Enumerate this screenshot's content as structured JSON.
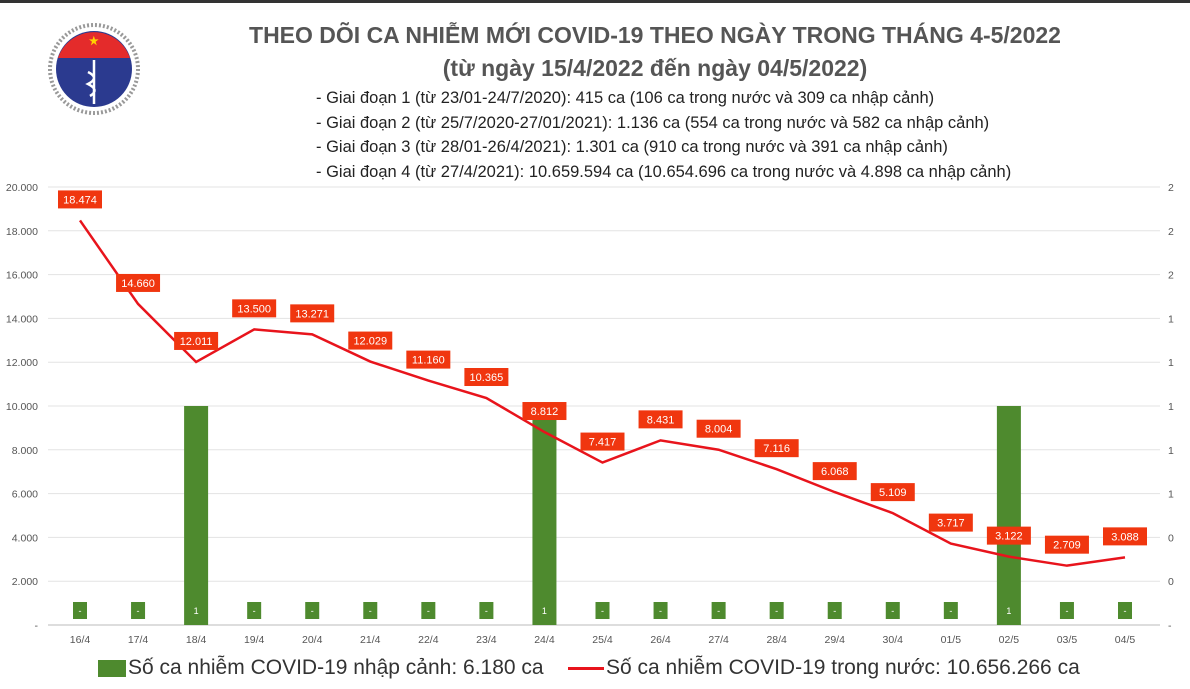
{
  "logo": {
    "top_text": "BỘ Y TẾ",
    "bottom_text": "MINISTRY OF HEALTH"
  },
  "title_line1": "THEO DÕI CA NHIỄM MỚI COVID-19 THEO NGÀY TRONG THÁNG 4-5/2022",
  "title_line2": "(từ ngày 15/4/2022 đến ngày 04/5/2022)",
  "phases": [
    "- Giai đoạn 1 (từ 23/01-24/7/2020): 415 ca (106 ca trong nước và 309 ca nhập cảnh)",
    "- Giai đoạn 2 (từ 25/7/2020-27/01/2021): 1.136 ca (554 ca trong nước và 582 ca nhập cảnh)",
    "- Giai đoạn 3 (từ 28/01-26/4/2021): 1.301 ca (910 ca trong nước và 391 ca nhập cảnh)",
    "- Giai đoạn 4 (từ 27/4/2021): 10.659.594 ca (10.654.696 ca trong nước và 4.898 ca nhập cảnh)"
  ],
  "legend": {
    "bar": "Số ca nhiễm COVID-19 nhập cảnh: 6.180 ca",
    "line": "Số ca nhiễm COVID-19 trong nước: 10.656.266 ca"
  },
  "colors": {
    "bar": "#4e8a2e",
    "line": "#e8141c",
    "label": "#f0360f"
  },
  "chart_data": {
    "type": "bar+line",
    "categories": [
      "16/4",
      "17/4",
      "18/4",
      "19/4",
      "20/4",
      "21/4",
      "22/4",
      "23/4",
      "24/4",
      "25/4",
      "26/4",
      "27/4",
      "28/4",
      "29/4",
      "30/4",
      "01/5",
      "02/5",
      "03/5",
      "04/5"
    ],
    "series": [
      {
        "name": "Số ca nhiễm COVID-19 nhập cảnh",
        "type": "bar",
        "axis": "right",
        "values": [
          0,
          0,
          1,
          0,
          0,
          0,
          0,
          0,
          1,
          0,
          0,
          0,
          0,
          0,
          0,
          0,
          1,
          0,
          0
        ]
      },
      {
        "name": "Số ca nhiễm COVID-19 trong nước",
        "type": "line",
        "axis": "left",
        "values": [
          18474,
          14660,
          12011,
          13500,
          13271,
          12029,
          11160,
          10365,
          8812,
          7417,
          8431,
          8004,
          7116,
          6068,
          5109,
          3717,
          3122,
          2709,
          3088
        ],
        "labels": [
          "18.474",
          "14.660",
          "12.011",
          "13.500",
          "13.271",
          "12.029",
          "11.160",
          "10.365",
          "8.812",
          "7.417",
          "8.431",
          "8.004",
          "7.116",
          "6.068",
          "5.109",
          "3.717",
          "3.122",
          "2.709",
          "3.088"
        ]
      }
    ],
    "left_ticks": [
      "-",
      "2.000",
      "4.000",
      "6.000",
      "8.000",
      "10.000",
      "12.000",
      "14.000",
      "16.000",
      "18.000",
      "20.000"
    ],
    "right_ticks": [
      "-",
      "0",
      "0",
      "1",
      "1",
      "1",
      "1",
      "1",
      "2",
      "2",
      "2"
    ],
    "ylim": [
      0,
      20000
    ],
    "y2lim": [
      0,
      2
    ],
    "grid": true,
    "legend_position": "bottom"
  }
}
